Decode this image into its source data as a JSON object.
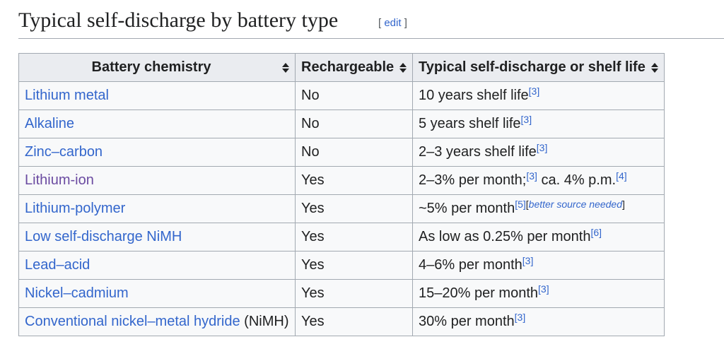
{
  "heading": {
    "title": "Typical self-discharge by battery type",
    "edit_open": "[ ",
    "edit_label": "edit",
    "edit_close": " ]"
  },
  "table": {
    "headers": [
      "Battery chemistry",
      "Rechargeable",
      "Typical self-discharge or shelf life"
    ],
    "rows": [
      {
        "chem": "Lithium metal",
        "chem_suffix": "",
        "rech": "No",
        "value": "10 years shelf life",
        "refs": [
          "[3]"
        ],
        "value2": "",
        "refs2": []
      },
      {
        "chem": "Alkaline",
        "chem_suffix": "",
        "rech": "No",
        "value": "5 years shelf life",
        "refs": [
          "[3]"
        ],
        "value2": "",
        "refs2": []
      },
      {
        "chem": "Zinc–carbon",
        "chem_suffix": "",
        "rech": "No",
        "value": "2–3 years shelf life",
        "refs": [
          "[3]"
        ],
        "value2": "",
        "refs2": []
      },
      {
        "chem": "Lithium-ion",
        "chem_suffix": "",
        "rech": "Yes",
        "value": "2–3% per month;",
        "refs": [
          "[3]"
        ],
        "value2": " ca. 4% p.m.",
        "refs2": [
          "[4]"
        ]
      },
      {
        "chem": "Lithium-polymer",
        "chem_suffix": "",
        "rech": "Yes",
        "value": "~5% per month",
        "refs": [
          "[5]"
        ],
        "value2": "",
        "refs2": [],
        "note_open": "[",
        "note": "better source needed",
        "note_close": "]"
      },
      {
        "chem": "Low self-discharge NiMH",
        "chem_suffix": "",
        "rech": "Yes",
        "value": "As low as 0.25% per month",
        "refs": [
          "[6]"
        ],
        "value2": "",
        "refs2": []
      },
      {
        "chem": "Lead–acid",
        "chem_suffix": "",
        "rech": "Yes",
        "value": "4–6% per month",
        "refs": [
          "[3]"
        ],
        "value2": "",
        "refs2": []
      },
      {
        "chem": "Nickel–cadmium",
        "chem_suffix": "",
        "rech": "Yes",
        "value": "15–20% per month",
        "refs": [
          "[3]"
        ],
        "value2": "",
        "refs2": []
      },
      {
        "chem": "Conventional nickel–metal hydride",
        "chem_suffix": " (NiMH)",
        "rech": "Yes",
        "value": "30% per month",
        "refs": [
          "[3]"
        ],
        "value2": "",
        "refs2": []
      }
    ]
  },
  "colors": {
    "link": "#3366cc",
    "visited_link": "#6b4ba1",
    "header_bg": "#eaecf0",
    "cell_bg": "#f8f9fa",
    "border": "#a2a9b1"
  },
  "icons": {
    "sort": "sort-arrows-icon"
  }
}
